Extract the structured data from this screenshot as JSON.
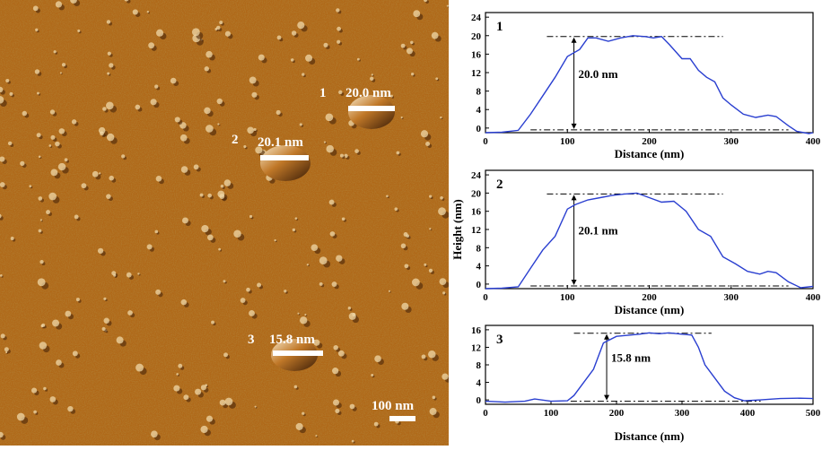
{
  "afm_image": {
    "markers": [
      {
        "number": "1",
        "height_label": "20.0 nm"
      },
      {
        "number": "2",
        "height_label": "20.1 nm"
      },
      {
        "number": "3",
        "height_label": "15.8 nm"
      }
    ],
    "scale_bar_label": "100 nm",
    "colors": {
      "base": "#b06818",
      "light": "#f0d8a8",
      "dark": "#3a1c06"
    }
  },
  "chart_data": [
    {
      "type": "line",
      "panel_label": "1",
      "xlabel": "Distance (nm)",
      "ylabel": "",
      "xlim": [
        0,
        400
      ],
      "ylim": [
        -1,
        25
      ],
      "xticks": [
        0,
        100,
        200,
        300,
        400
      ],
      "yticks": [
        0,
        4,
        8,
        12,
        16,
        20,
        24
      ],
      "annotation": "20.0 nm",
      "top_line_y": 19.8,
      "bottom_line_y": -0.4,
      "line_color": "#2a3fd0",
      "x": [
        0,
        20,
        40,
        55,
        70,
        85,
        100,
        115,
        125,
        135,
        150,
        165,
        180,
        195,
        205,
        215,
        225,
        240,
        250,
        260,
        270,
        280,
        290,
        300,
        315,
        330,
        345,
        355,
        370,
        380,
        395,
        400
      ],
      "y": [
        -1,
        -0.9,
        -0.5,
        3,
        7,
        11,
        15.5,
        17,
        19.5,
        19.5,
        18.8,
        19.5,
        20,
        19.8,
        19.5,
        19.8,
        18,
        15,
        15,
        12.5,
        11,
        10,
        6.5,
        5,
        3,
        2.3,
        2.8,
        2.5,
        0.5,
        -0.7,
        -1.2,
        -1
      ]
    },
    {
      "type": "line",
      "panel_label": "2",
      "xlabel": "Distance (nm)",
      "ylabel": "Height (nm)",
      "xlim": [
        0,
        400
      ],
      "ylim": [
        -1,
        25
      ],
      "xticks": [
        0,
        100,
        200,
        300,
        400
      ],
      "yticks": [
        0,
        4,
        8,
        12,
        16,
        20,
        24
      ],
      "annotation": "20.1 nm",
      "top_line_y": 19.8,
      "bottom_line_y": -0.4,
      "line_color": "#2a3fd0",
      "x": [
        0,
        20,
        40,
        55,
        70,
        85,
        100,
        110,
        125,
        140,
        155,
        170,
        185,
        200,
        215,
        230,
        245,
        260,
        275,
        290,
        305,
        320,
        335,
        345,
        355,
        370,
        385,
        400
      ],
      "y": [
        -1,
        -0.9,
        -0.6,
        3.5,
        7.5,
        10.5,
        16.5,
        17.5,
        18.5,
        19,
        19.5,
        19.8,
        20,
        19,
        18,
        18.2,
        16,
        12,
        10.5,
        6,
        4.5,
        2.8,
        2.2,
        2.8,
        2.5,
        0.5,
        -0.8,
        -0.5
      ]
    },
    {
      "type": "line",
      "panel_label": "3",
      "xlabel": "Distance (nm)",
      "ylabel": "",
      "xlim": [
        0,
        500
      ],
      "ylim": [
        -1,
        17
      ],
      "xticks": [
        0,
        100,
        200,
        300,
        400,
        500
      ],
      "yticks": [
        0,
        4,
        8,
        12,
        16
      ],
      "annotation": "15.8 nm",
      "top_line_y": 15.2,
      "bottom_line_y": -0.3,
      "line_color": "#2a3fd0",
      "x": [
        0,
        30,
        60,
        75,
        100,
        125,
        135,
        150,
        165,
        180,
        200,
        215,
        235,
        250,
        265,
        280,
        300,
        315,
        325,
        335,
        350,
        365,
        380,
        395,
        420,
        450,
        480,
        500
      ],
      "y": [
        -0.3,
        -0.5,
        -0.3,
        0.2,
        -0.3,
        -0.2,
        1,
        4,
        7,
        13,
        14.5,
        14.7,
        15,
        15.3,
        15.1,
        15.3,
        15,
        14.8,
        12,
        8,
        5,
        2,
        0.5,
        -0.2,
        0,
        0.3,
        0.4,
        0.3
      ]
    }
  ]
}
